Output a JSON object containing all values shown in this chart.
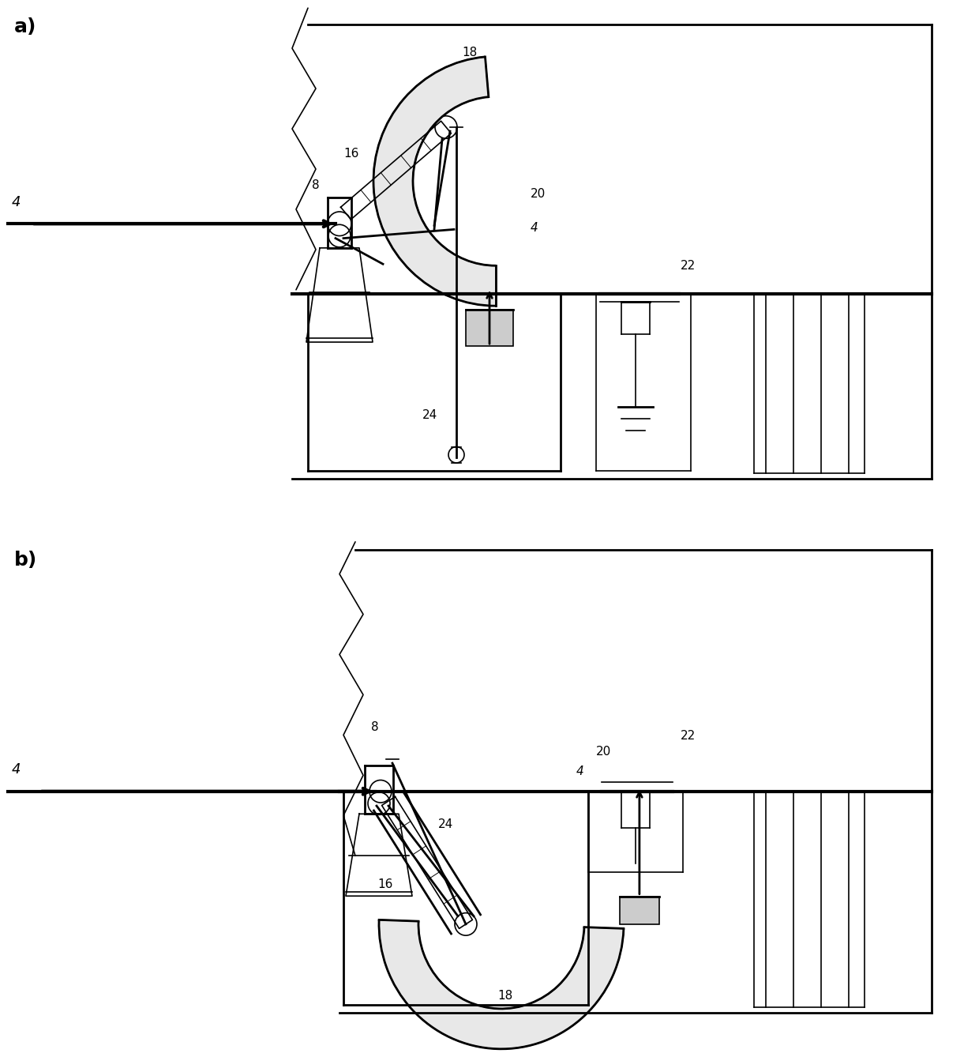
{
  "figure_width": 12.4,
  "figure_height": 13.38,
  "bg": "#ffffff",
  "lc": "#000000",
  "label_a": "a)",
  "label_b": "b)"
}
